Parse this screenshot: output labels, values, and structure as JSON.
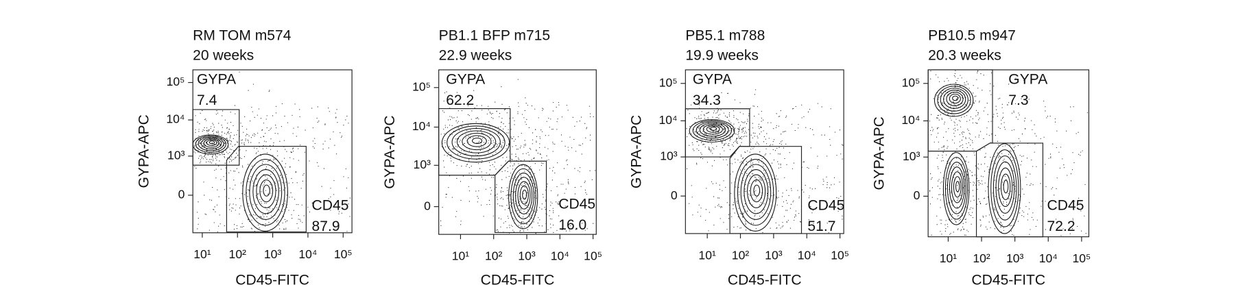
{
  "chart_data": [
    {
      "type": "contour",
      "title": "RM TOM m574",
      "subtitle": "20 weeks",
      "xlabel": "CD45-FITC",
      "ylabel": "GYPA-APC",
      "xscale": "log",
      "yscale": "biexponential",
      "xlim": [
        5.4,
        178000
      ],
      "ylim": [
        -900,
        218000
      ],
      "xticks": [
        {
          "value": 10,
          "label": "10¹"
        },
        {
          "value": 100,
          "label": "10²"
        },
        {
          "value": 1000,
          "label": "10³"
        },
        {
          "value": 10000,
          "label": "10⁴"
        },
        {
          "value": 100000,
          "label": "10⁵"
        }
      ],
      "yticks": [
        0,
        {
          "value": 1000,
          "label": "10³"
        },
        {
          "value": 10000,
          "label": "10⁴"
        },
        {
          "value": 100000,
          "label": "10⁵"
        }
      ],
      "gates": [
        {
          "name": "GYPA",
          "value": 7.4,
          "points": [
            [
              5.4,
              19000
            ],
            [
              112,
              19000
            ],
            [
              112,
              530
            ],
            [
              5.4,
              530
            ]
          ]
        },
        {
          "name": "CD45",
          "value": 87.9,
          "points": [
            [
              49,
              750
            ],
            [
              107,
              1900
            ],
            [
              8900,
              1900
            ],
            [
              8900,
              -850
            ],
            [
              49,
              -850
            ]
          ]
        }
      ]
    },
    {
      "type": "contour",
      "title": "PB1.1 BFP m715",
      "subtitle": "22.9 weeks",
      "xlabel": "CD45-FITC",
      "ylabel": "GYPA-APC",
      "xscale": "log",
      "yscale": "biexponential",
      "xlim": [
        2.2,
        125000
      ],
      "ylim": [
        -400,
        280000
      ],
      "xticks": [
        {
          "value": 10,
          "label": "10¹"
        },
        {
          "value": 100,
          "label": "10²"
        },
        {
          "value": 1000,
          "label": "10³"
        },
        {
          "value": 10000,
          "label": "10⁴"
        },
        {
          "value": 100000,
          "label": "10⁵"
        }
      ],
      "yticks": [
        0,
        {
          "value": 1000,
          "label": "10³"
        },
        {
          "value": 10000,
          "label": "10⁴"
        },
        {
          "value": 100000,
          "label": "10⁵"
        }
      ],
      "gates": [
        {
          "name": "GYPA",
          "value": 62.2,
          "points": [
            [
              2.2,
              29400
            ],
            [
              316,
              29400
            ],
            [
              316,
              1300
            ],
            [
              280,
              1300
            ],
            [
              110,
              520
            ],
            [
              2.2,
              520
            ]
          ]
        },
        {
          "name": "CD45",
          "value": 16,
          "value_label": "16.0",
          "points": [
            [
              110,
              520
            ],
            [
              280,
              1300
            ],
            [
              3900,
              1300
            ],
            [
              3900,
              -350
            ],
            [
              110,
              -350
            ]
          ]
        }
      ]
    },
    {
      "type": "contour",
      "title": "PB5.1 m788",
      "subtitle": "19.9 weeks",
      "xlabel": "CD45-FITC",
      "ylabel": "GYPA-APC",
      "xscale": "log",
      "yscale": "biexponential",
      "xlim": [
        2.2,
        130000
      ],
      "ylim": [
        -900,
        230000
      ],
      "xticks": [
        {
          "value": 10,
          "label": "10¹"
        },
        {
          "value": 100,
          "label": "10²"
        },
        {
          "value": 1000,
          "label": "10³"
        },
        {
          "value": 10000,
          "label": "10⁴"
        },
        {
          "value": 100000,
          "label": "10⁵"
        }
      ],
      "yticks": [
        0,
        {
          "value": 1000,
          "label": "10³"
        },
        {
          "value": 10000,
          "label": "10⁴"
        },
        {
          "value": 100000,
          "label": "10⁵"
        }
      ],
      "gates": [
        {
          "name": "GYPA",
          "value": 34.3,
          "points": [
            [
              2.2,
              21000
            ],
            [
              190,
              21000
            ],
            [
              190,
              2000
            ],
            [
              93,
              2000
            ],
            [
              48,
              1000
            ],
            [
              2.2,
              1000
            ]
          ]
        },
        {
          "name": "CD45",
          "value": 51.7,
          "points": [
            [
              48,
              900
            ],
            [
              93,
              2000
            ],
            [
              6900,
              2000
            ],
            [
              6900,
              -900
            ],
            [
              48,
              -900
            ]
          ]
        }
      ]
    },
    {
      "type": "contour",
      "title": "PB10.5 m947",
      "subtitle": "20.3 weeks",
      "xlabel": "CD45-FITC",
      "ylabel": "GYPA-APC",
      "xscale": "log",
      "yscale": "biexponential",
      "xlim": [
        2.5,
        165000
      ],
      "ylim": [
        -1100,
        230000
      ],
      "xticks": [
        {
          "value": 10,
          "label": "10¹"
        },
        {
          "value": 100,
          "label": "10²"
        },
        {
          "value": 1000,
          "label": "10³"
        },
        {
          "value": 10000,
          "label": "10⁴"
        },
        {
          "value": 100000,
          "label": "10⁵"
        }
      ],
      "yticks": [
        0,
        {
          "value": 1000,
          "label": "10³"
        },
        {
          "value": 10000,
          "label": "10⁴"
        },
        {
          "value": 100000,
          "label": "10⁵"
        }
      ],
      "gates": [
        {
          "name": "GYPA",
          "value": 7.3,
          "points": [
            [
              2.5,
              230000
            ],
            [
              213,
              230000
            ],
            [
              213,
              2480
            ],
            [
              178,
              2480
            ],
            [
              70,
              1480
            ],
            [
              2.5,
              1480
            ]
          ]
        },
        {
          "name": "CD45",
          "value": 72.2,
          "points": [
            [
              70,
              1480
            ],
            [
              178,
              2480
            ],
            [
              6900,
              2480
            ],
            [
              6900,
              -1100
            ],
            [
              70,
              -1100
            ]
          ]
        }
      ]
    }
  ]
}
